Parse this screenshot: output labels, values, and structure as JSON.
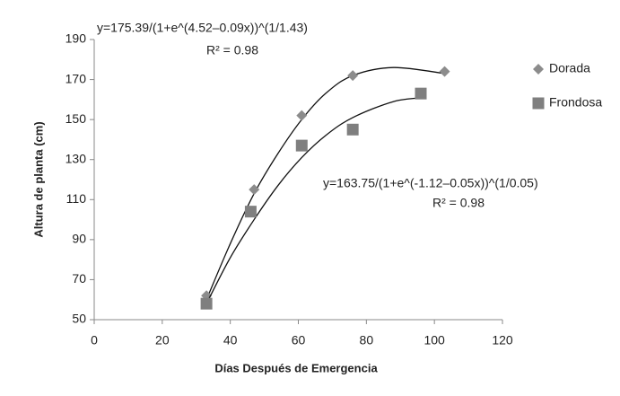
{
  "chart_data": {
    "type": "scatter",
    "xlabel": "Días Después de Emergencia",
    "ylabel": "Altura de planta (cm)",
    "xlim": [
      0,
      120
    ],
    "xticks": [
      0,
      20,
      40,
      60,
      80,
      100,
      120
    ],
    "ylim": [
      50,
      190
    ],
    "yticks": [
      50,
      70,
      90,
      110,
      130,
      150,
      170,
      190
    ],
    "grid": false,
    "legend": "right",
    "series": [
      {
        "name": "Dorada",
        "color": "#8c8c8c",
        "marker": "diamond",
        "x": [
          33,
          47,
          61,
          76,
          103
        ],
        "values": [
          62,
          115,
          152,
          172,
          174
        ],
        "trend": {
          "x": [
            33,
            40,
            47,
            54,
            61,
            68,
            76,
            88,
            103
          ],
          "values": [
            60,
            88,
            113,
            133,
            150,
            163,
            172,
            176,
            173
          ]
        }
      },
      {
        "name": "Frondosa",
        "color": "#7f7f7f",
        "marker": "square",
        "x": [
          33,
          46,
          61,
          76,
          96
        ],
        "values": [
          58,
          104,
          137,
          145,
          163
        ],
        "trend": {
          "x": [
            33,
            40,
            47,
            54,
            61,
            68,
            76,
            88,
            97
          ],
          "values": [
            58,
            81,
            100,
            117,
            131,
            142,
            151,
            159,
            161
          ]
        }
      }
    ],
    "annotations": [
      "y=175.39/(1+e^(4.52–0.09x))^(1/1.43)",
      "R² = 0.98",
      "y=163.75/(1+e^(-1.12–0.05x))^(1/0.05)",
      "R² = 0.98"
    ]
  }
}
